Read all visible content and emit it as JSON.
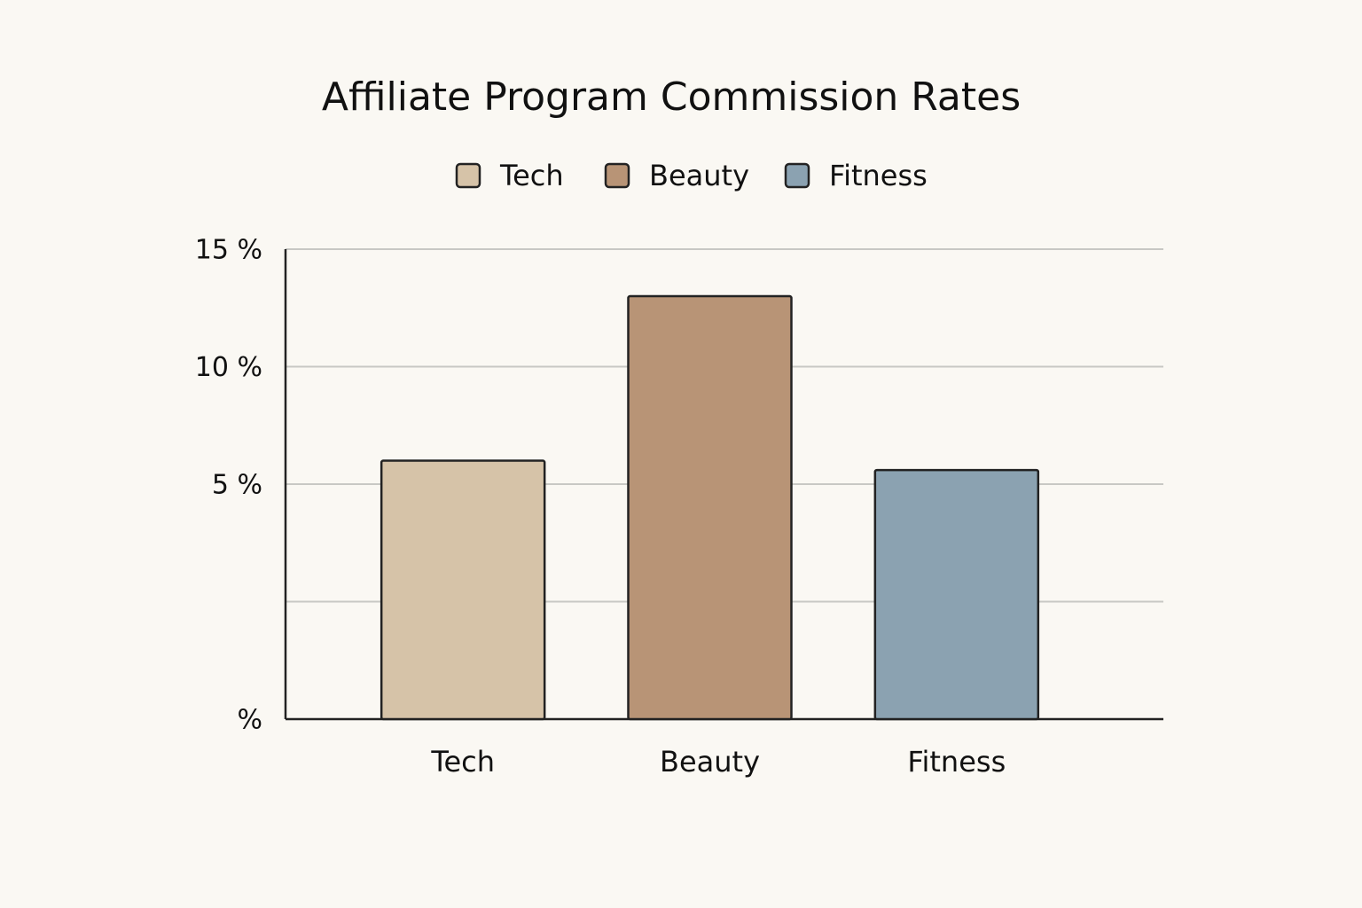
{
  "chart_data": {
    "type": "bar",
    "title": "Affiliate Program Commission Rates",
    "categories": [
      "Tech",
      "Beauty",
      "Fitness"
    ],
    "values": [
      6,
      13,
      5.6
    ],
    "colors": [
      "#d6c3a8",
      "#b89476",
      "#8ba2b1"
    ],
    "legend": "top",
    "ylim": [
      -5,
      15
    ],
    "yticks": [
      {
        "value": -5,
        "label": "%"
      },
      {
        "value": 0,
        "label": null
      },
      {
        "value": 5,
        "label": "5 %"
      },
      {
        "value": 10,
        "label": "10 %"
      },
      {
        "value": 15,
        "label": "15 %"
      }
    ],
    "grid": true
  }
}
